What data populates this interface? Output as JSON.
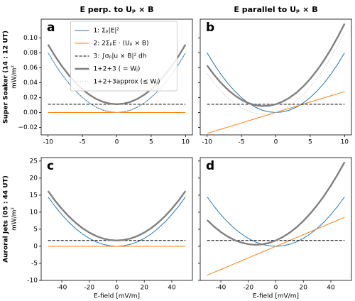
{
  "chart_data": [
    {
      "type": "line",
      "panel_label": "a",
      "title": "E perp. to Uₚ × B",
      "row_label": "Super Soaker (14 : 12 UT)",
      "ylabel": "mW/m²",
      "legend": "upper center",
      "x": [
        -10,
        -9,
        -8,
        -7,
        -6,
        -5,
        -4,
        -3,
        -2,
        -1,
        0,
        1,
        2,
        3,
        4,
        5,
        6,
        7,
        8,
        9,
        10
      ],
      "xlim": [
        -11,
        11
      ],
      "xticks": [
        -10,
        -5,
        0,
        5,
        10
      ],
      "ylim": [
        -0.03,
        0.125
      ],
      "yticks": [
        {
          "value": -0.02,
          "label": "−0.02"
        },
        {
          "value": 0,
          "label": "0.00"
        },
        {
          "value": 0.02,
          "label": "0.02"
        },
        {
          "value": 0.04,
          "label": "0.04"
        },
        {
          "value": 0.06,
          "label": "0.06"
        },
        {
          "value": 0.08,
          "label": "0.08"
        },
        {
          "value": 0.1,
          "label": "0.10"
        }
      ],
      "series": [
        {
          "name": "1: Σₚ|E|²",
          "color": "#1f77b4",
          "linestyle": "solid",
          "values": [
            0.08,
            0.0648,
            0.0512,
            0.0392,
            0.0288,
            0.02,
            0.0128,
            0.0072,
            0.0032,
            0.0008,
            0,
            0.0008,
            0.0032,
            0.0072,
            0.0128,
            0.02,
            0.0288,
            0.0392,
            0.0512,
            0.0648,
            0.08
          ]
        },
        {
          "name": "2: 2ΣₚE · (Uₚ × B)",
          "color": "#ff7f0e",
          "linestyle": "solid",
          "values": [
            0,
            0,
            0,
            0,
            0,
            0,
            0,
            0,
            0,
            0,
            0,
            0,
            0,
            0,
            0,
            0,
            0,
            0,
            0,
            0,
            0
          ]
        },
        {
          "name": "3: ∫σₚ|u × B|² dh",
          "color": "#000000",
          "linestyle": "dashed",
          "values": [
            0.011,
            0.011,
            0.011,
            0.011,
            0.011,
            0.011,
            0.011,
            0.011,
            0.011,
            0.011,
            0.011,
            0.011,
            0.011,
            0.011,
            0.011,
            0.011,
            0.011,
            0.011,
            0.011,
            0.011,
            0.011
          ]
        },
        {
          "name": "1+2+3 ( = Wⱼ)",
          "color": "#808080",
          "linestyle": "thick",
          "values": [
            0.091,
            0.0758,
            0.0622,
            0.0502,
            0.0398,
            0.031,
            0.0238,
            0.0182,
            0.0142,
            0.0118,
            0.011,
            0.0118,
            0.0142,
            0.0182,
            0.0238,
            0.031,
            0.0398,
            0.0502,
            0.0622,
            0.0758,
            0.091
          ]
        },
        {
          "name": "1+2+3approx (≤ Wⱼ)",
          "color": "#c8c8c8",
          "linestyle": "dotted",
          "values": [
            0.08,
            0.0648,
            0.0512,
            0.0392,
            0.0288,
            0.02,
            0.0128,
            0.0072,
            0.0032,
            0.0008,
            0,
            0.0008,
            0.0032,
            0.0072,
            0.0128,
            0.02,
            0.0288,
            0.0392,
            0.0512,
            0.0648,
            0.08
          ]
        }
      ]
    },
    {
      "type": "line",
      "panel_label": "b",
      "title": "E parallel to Uₚ × B",
      "x": [
        -10,
        -9,
        -8,
        -7,
        -6,
        -5,
        -4,
        -3,
        -2,
        -1,
        0,
        1,
        2,
        3,
        4,
        5,
        6,
        7,
        8,
        9,
        10
      ],
      "xlim": [
        -11,
        11
      ],
      "xticks": [
        -10,
        -5,
        0,
        5,
        10
      ],
      "ylim": [
        -0.03,
        0.125
      ],
      "yticks": [
        -0.02,
        0,
        0.02,
        0.04,
        0.06,
        0.08,
        0.1
      ],
      "ytick_labels": false,
      "series": [
        {
          "color": "#1f77b4",
          "linestyle": "solid",
          "values": [
            0.08,
            0.0648,
            0.0512,
            0.0392,
            0.0288,
            0.02,
            0.0128,
            0.0072,
            0.0032,
            0.0008,
            0,
            0.0008,
            0.0032,
            0.0072,
            0.0128,
            0.02,
            0.0288,
            0.0392,
            0.0512,
            0.0648,
            0.08
          ]
        },
        {
          "color": "#ff7f0e",
          "linestyle": "solid",
          "values": [
            -0.028,
            -0.0252,
            -0.0224,
            -0.0196,
            -0.0168,
            -0.014,
            -0.0112,
            -0.0084,
            -0.0056,
            -0.0028,
            0,
            0.0028,
            0.0056,
            0.0084,
            0.0112,
            0.014,
            0.0168,
            0.0196,
            0.0224,
            0.0252,
            0.028
          ]
        },
        {
          "color": "#000000",
          "linestyle": "dashed",
          "values": [
            0.011,
            0.011,
            0.011,
            0.011,
            0.011,
            0.011,
            0.011,
            0.011,
            0.011,
            0.011,
            0.011,
            0.011,
            0.011,
            0.011,
            0.011,
            0.011,
            0.011,
            0.011,
            0.011,
            0.011,
            0.011
          ]
        },
        {
          "color": "#808080",
          "linestyle": "thick",
          "values": [
            0.063,
            0.0506,
            0.0398,
            0.0306,
            0.023,
            0.017,
            0.0126,
            0.0098,
            0.0086,
            0.009,
            0.011,
            0.0146,
            0.0198,
            0.0266,
            0.035,
            0.045,
            0.0566,
            0.0698,
            0.0846,
            0.101,
            0.119
          ]
        },
        {
          "color": "#c8c8c8",
          "linestyle": "dotted",
          "values": [
            0.052,
            0.0396,
            0.0288,
            0.0196,
            0.012,
            0.006,
            0.0016,
            -0.0012,
            -0.0024,
            -0.002,
            0,
            0.0036,
            0.0088,
            0.0156,
            0.024,
            0.034,
            0.0456,
            0.0588,
            0.0736,
            0.09,
            0.108
          ]
        }
      ]
    },
    {
      "type": "line",
      "panel_label": "c",
      "row_label": "Auroral Jets (05 : 44 UT)",
      "ylabel": "mW/m²",
      "xlabel": "E-field [mV/m]",
      "x": [
        -50,
        -45,
        -40,
        -35,
        -30,
        -25,
        -20,
        -15,
        -10,
        -5,
        0,
        5,
        10,
        15,
        20,
        25,
        30,
        35,
        40,
        45,
        50
      ],
      "xlim": [
        -55,
        55
      ],
      "xticks": [
        -40,
        -20,
        0,
        20,
        40
      ],
      "ylim": [
        -10,
        26
      ],
      "yticks": [
        -10,
        -5,
        0,
        5,
        10,
        15,
        20,
        25
      ],
      "series": [
        {
          "color": "#1f77b4",
          "linestyle": "solid",
          "values": [
            14.5,
            11.745,
            9.28,
            7.105,
            5.22,
            3.625,
            2.32,
            1.305,
            0.58,
            0.145,
            0,
            0.145,
            0.58,
            1.305,
            2.32,
            3.625,
            5.22,
            7.105,
            9.28,
            11.745,
            14.5
          ]
        },
        {
          "color": "#ff7f0e",
          "linestyle": "solid",
          "values": [
            0,
            0,
            0,
            0,
            0,
            0,
            0,
            0,
            0,
            0,
            0,
            0,
            0,
            0,
            0,
            0,
            0,
            0,
            0,
            0,
            0
          ]
        },
        {
          "color": "#000000",
          "linestyle": "dashed",
          "values": [
            1.7,
            1.7,
            1.7,
            1.7,
            1.7,
            1.7,
            1.7,
            1.7,
            1.7,
            1.7,
            1.7,
            1.7,
            1.7,
            1.7,
            1.7,
            1.7,
            1.7,
            1.7,
            1.7,
            1.7,
            1.7
          ]
        },
        {
          "color": "#808080",
          "linestyle": "thick",
          "values": [
            16.2,
            13.445,
            10.98,
            8.805,
            6.92,
            5.325,
            4.02,
            3.005,
            2.28,
            1.845,
            1.7,
            1.845,
            2.28,
            3.005,
            4.02,
            5.325,
            6.92,
            8.805,
            10.98,
            13.445,
            16.2
          ]
        }
      ]
    },
    {
      "type": "line",
      "panel_label": "d",
      "xlabel": "E-field [mV/m]",
      "x": [
        -50,
        -45,
        -40,
        -35,
        -30,
        -25,
        -20,
        -15,
        -10,
        -5,
        0,
        5,
        10,
        15,
        20,
        25,
        30,
        35,
        40,
        45,
        50
      ],
      "xlim": [
        -55,
        55
      ],
      "xticks": [
        -40,
        -20,
        0,
        20,
        40
      ],
      "ylim": [
        -10,
        26
      ],
      "yticks": [
        -10,
        -5,
        0,
        5,
        10,
        15,
        20,
        25
      ],
      "ytick_labels": false,
      "series": [
        {
          "color": "#1f77b4",
          "linestyle": "solid",
          "values": [
            14.5,
            11.745,
            9.28,
            7.105,
            5.22,
            3.625,
            2.32,
            1.305,
            0.58,
            0.145,
            0,
            0.145,
            0.58,
            1.305,
            2.32,
            3.625,
            5.22,
            7.105,
            9.28,
            11.745,
            14.5
          ]
        },
        {
          "color": "#ff7f0e",
          "linestyle": "solid",
          "values": [
            -8.5,
            -7.65,
            -6.8,
            -5.95,
            -5.1,
            -4.25,
            -3.4,
            -2.55,
            -1.7,
            -0.85,
            0,
            0.85,
            1.7,
            2.55,
            3.4,
            4.25,
            5.1,
            5.95,
            6.8,
            7.65,
            8.5
          ]
        },
        {
          "color": "#000000",
          "linestyle": "dashed",
          "values": [
            1.7,
            1.7,
            1.7,
            1.7,
            1.7,
            1.7,
            1.7,
            1.7,
            1.7,
            1.7,
            1.7,
            1.7,
            1.7,
            1.7,
            1.7,
            1.7,
            1.7,
            1.7,
            1.7,
            1.7,
            1.7
          ]
        },
        {
          "color": "#808080",
          "linestyle": "thick",
          "values": [
            7.7,
            5.795,
            4.18,
            2.855,
            1.82,
            1.075,
            0.62,
            0.455,
            0.58,
            0.995,
            1.7,
            2.695,
            3.98,
            5.555,
            7.42,
            9.575,
            12.02,
            14.755,
            17.78,
            21.095,
            24.7
          ]
        }
      ]
    }
  ]
}
